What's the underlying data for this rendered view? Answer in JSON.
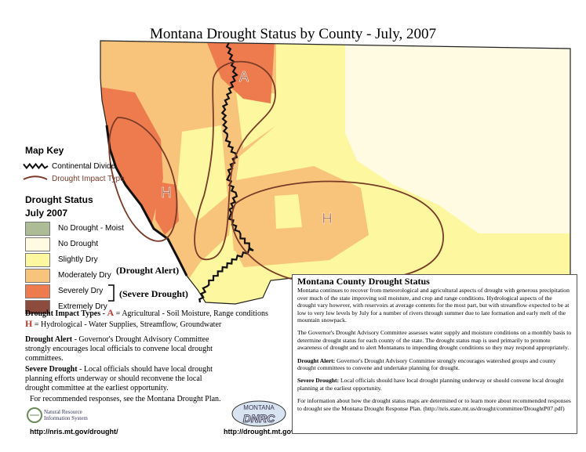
{
  "title": "Montana Drought Status by County - July, 2007",
  "map_labels": [
    "A",
    "H",
    "H"
  ],
  "map_key": {
    "title": "Map Key",
    "items": [
      "Continental Divide",
      "Drought Impact Type"
    ]
  },
  "drought_status": {
    "title": "Drought Status",
    "period": "July 2007",
    "levels": [
      {
        "label": "No Drought - Moist",
        "color": "#acbc97"
      },
      {
        "label": "No Drought",
        "color": "#fffbe3"
      },
      {
        "label": "Slightly Dry",
        "color": "#fdf79f"
      },
      {
        "label": "Moderately Dry",
        "color": "#f8c37a"
      },
      {
        "label": "Severely Dry",
        "color": "#ee7b4d"
      },
      {
        "label": "Extremely Dry",
        "color": "#8c4b3c"
      }
    ],
    "alert_label": "(Drought Alert)",
    "severe_label": "(Severe Drought)"
  },
  "impact_types": {
    "heading": "Drought Impact Types - ",
    "items": [
      {
        "letter": "A",
        "text": "= Agricultural - Soil Moisture, Range conditions"
      },
      {
        "letter": "H",
        "text": "= Hydrological - Water Supplies, Streamflow, Groundwater"
      }
    ]
  },
  "definitions": [
    {
      "lead": "Drought Alert",
      "text": " - Governor's Drought Advisory Committee strongly encourages local officials to convene local drought committees."
    },
    {
      "lead": "Severe Drought",
      "text": " - Local officials should have local drought planning efforts underway or should reconvene the local drought committee at the earliest opportunity."
    },
    {
      "lead": "",
      "text": "For recommended responses, see the Montana Drought Plan."
    }
  ],
  "info_box": {
    "title": "Montana County Drought Status",
    "paragraphs": [
      {
        "lead": "",
        "text": "Montana continues to recover from meteorological and agricultural aspects of drought with generous precipitation over much of the state improving soil moisture, and crop and range conditions. Hydrological aspects of the drought vary however, with reservoirs at average contents for the most part, but with streamflow expected to be at low to very low levels by July for a number of rivers through summer due to late formation and early melt of the mountain snowpack."
      },
      {
        "lead": "",
        "text": "The Governor's Drought Advisory Committee assesses water supply and moisture conditions on a monthly basis to determine drought status for each county of the state. The drought status map is used primarily to promote awareness of drought and to alert Montanans to impending drought conditions so they may respond appropriately."
      },
      {
        "lead": "Drought Alert:",
        "text": " Governor's Drought Advisory Committee strongly encourages watershed groups and county drought committees to convene and undertake planning for drought."
      },
      {
        "lead": "Severe Drought:",
        "text": " Local officials should have local drought planning underway or should convene local drought planning at the earliest opportunity."
      },
      {
        "lead": "",
        "text": "For information about how the drought status maps are determined or to learn more about recommended responses to drought see the Montana Drought Response Plan. (http://nris.state.mt.us/drought/committee/DroughtP07.pdf)"
      }
    ]
  },
  "logos": [
    "Natural Resource Information System",
    "MONTANA",
    "DNRC"
  ],
  "links": [
    "http://nris.mt.gov/drought/",
    "http://drought.mt.gov/"
  ]
}
